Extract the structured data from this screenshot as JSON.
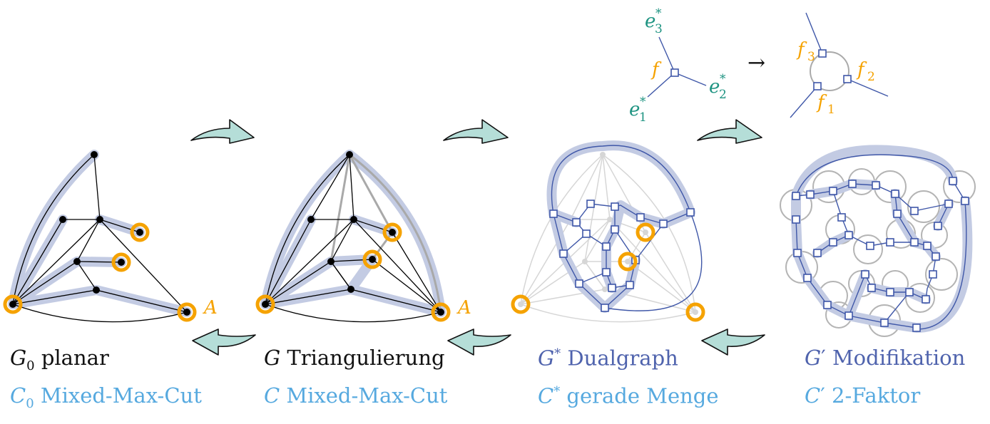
{
  "colors": {
    "highlight": "#c3cbe3",
    "terminal_ring": "#f5a200",
    "vertex": "#000000",
    "dual_blue": "#3f57a8",
    "faded_gray": "#d6d6d6",
    "arrow_fill": "#b5ded8",
    "teal_label": "#1f9482",
    "orange_label": "#f5a200",
    "caption_black": "#111111",
    "caption_blue": "#4f63ad",
    "caption_lightblue": "#56a9df"
  },
  "labels": {
    "A1": "A",
    "A2": "A",
    "f": "f",
    "e1": "e",
    "e2": "e",
    "e3": "e",
    "f1": "f",
    "f2": "f",
    "f3": "f",
    "i1": "1",
    "i2": "2",
    "i3": "3",
    "star": "*",
    "to_arrow": "→"
  },
  "captions": {
    "g0": {
      "sym": "G",
      "sub": "0",
      "text": " planar"
    },
    "c0": {
      "sym": "C",
      "sub": "0",
      "text": " Mixed-Max-Cut"
    },
    "g": {
      "sym": "G",
      "text": " Triangulierung"
    },
    "c": {
      "sym": "C",
      "text": " Mixed-Max-Cut"
    },
    "gstar": {
      "sym": "G",
      "sup": "*",
      "text": " Dualgraph"
    },
    "cstar": {
      "sym": "C",
      "sup": "*",
      "text": " gerade Menge"
    },
    "gprime": {
      "sym": "G",
      "sup": "′",
      "text": " Modifikation"
    },
    "cprime": {
      "sym": "C",
      "sup": "′",
      "text": " 2-Faktor"
    }
  }
}
